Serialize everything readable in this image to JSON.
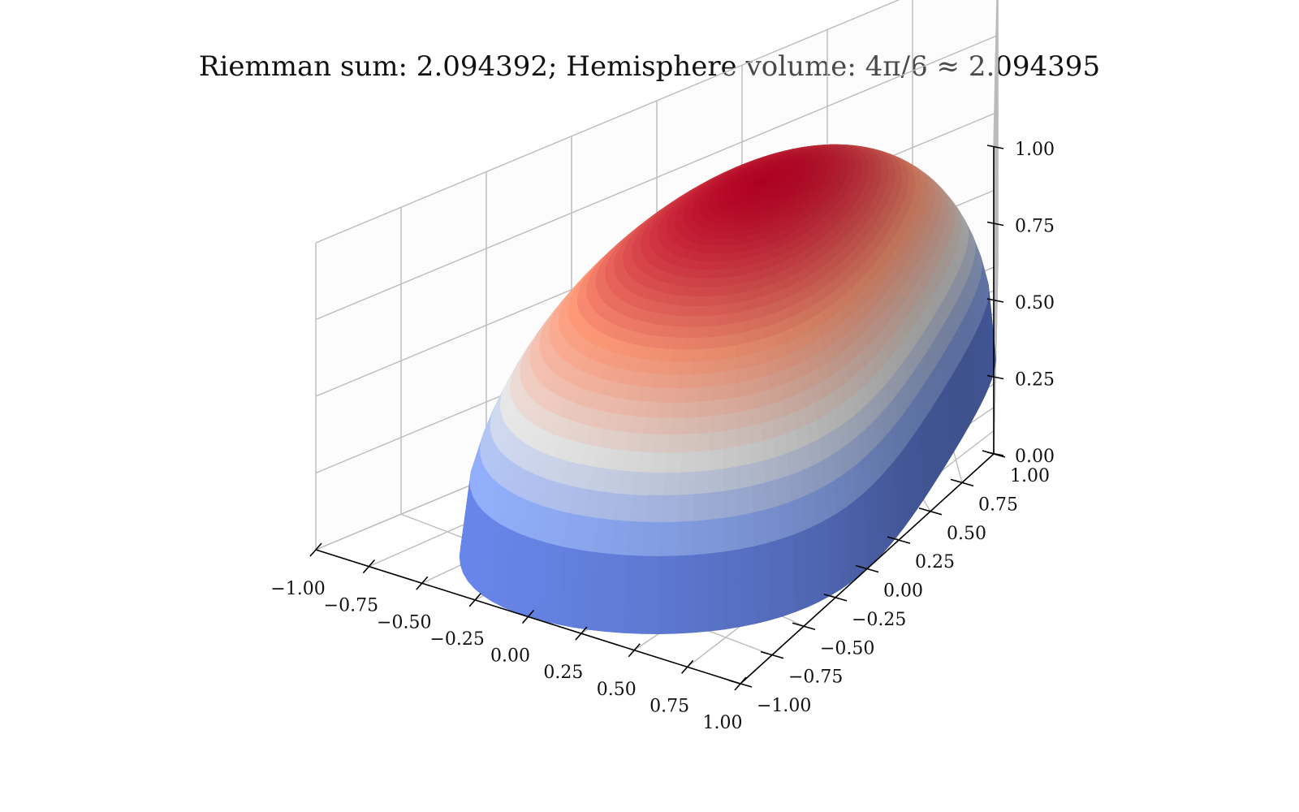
{
  "chart_data": {
    "type": "surface",
    "title": "Riemman sum: 2.094392; Hemisphere volume: 4π/6 ≈ 2.094395",
    "surface": "z = sqrt(1 - x^2 - y^2) for x^2 + y^2 <= 1 (upper hemisphere, unit radius)",
    "colormap": "coolwarm",
    "riemann_sum": 2.094392,
    "hemisphere_volume": 2.094395,
    "xlim": [
      -1.0,
      1.0
    ],
    "ylim": [
      -1.0,
      1.0
    ],
    "zlim": [
      0.0,
      1.0
    ],
    "x_ticks": [
      -1.0,
      -0.75,
      -0.5,
      -0.25,
      0.0,
      0.25,
      0.5,
      0.75,
      1.0
    ],
    "y_ticks": [
      -1.0,
      -0.75,
      -0.5,
      -0.25,
      0.0,
      0.25,
      0.5,
      0.75,
      1.0
    ],
    "z_ticks": [
      0.0,
      0.25,
      0.5,
      0.75,
      1.0
    ],
    "x_tick_labels": [
      "−1.00",
      "−0.75",
      "−0.50",
      "−0.25",
      "0.00",
      "0.25",
      "0.50",
      "0.75",
      "1.00"
    ],
    "y_tick_labels": [
      "−1.00",
      "−0.75",
      "−0.50",
      "−0.25",
      "0.00",
      "0.25",
      "0.50",
      "0.75",
      "1.00"
    ],
    "z_tick_labels": [
      "0.00",
      "0.25",
      "0.50",
      "0.75",
      "1.00"
    ],
    "grid": true,
    "colors": {
      "grid": "#bbbbbb",
      "axis": "#000000"
    }
  }
}
